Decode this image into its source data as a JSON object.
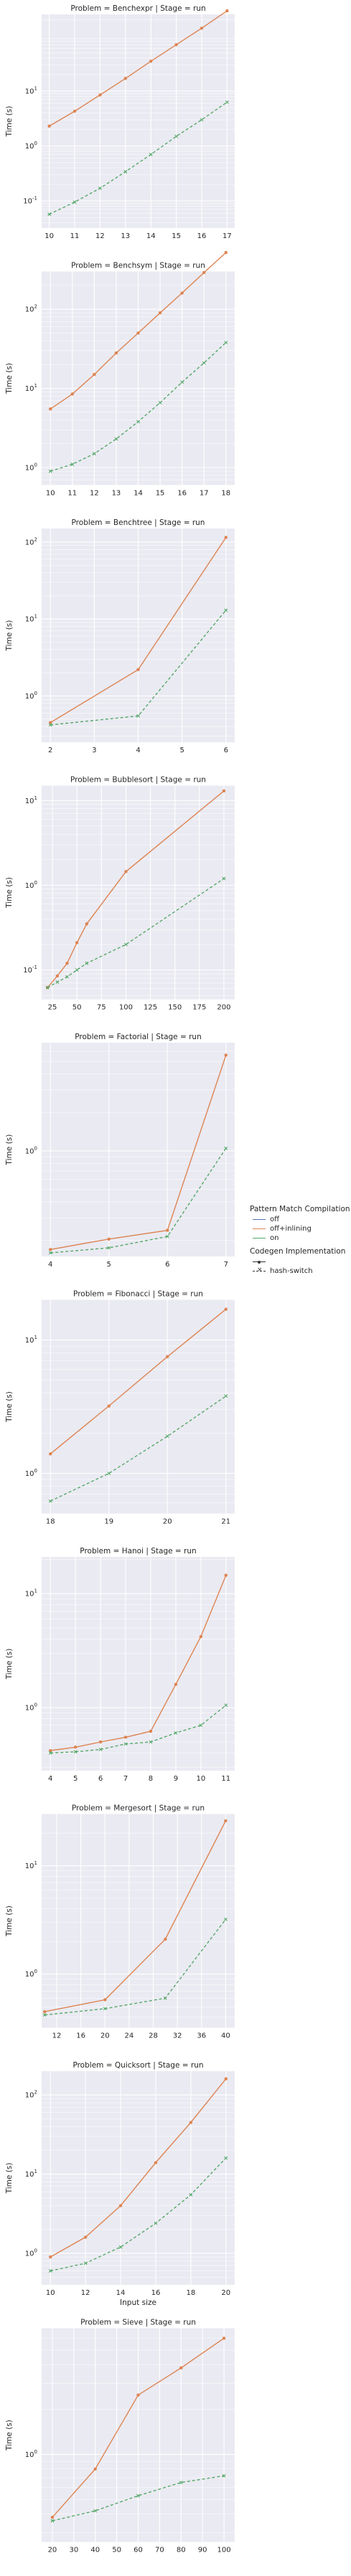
{
  "chart_data": [
    {
      "type": "line",
      "title": "Problem = Benchexpr | Stage = run",
      "xlabel": "",
      "ylabel": "Time (s)",
      "yscale": "log",
      "xlim": [
        9.7,
        17.3
      ],
      "ylim": [
        0.032,
        250
      ],
      "xticks": [
        10,
        11,
        12,
        13,
        14,
        15,
        16,
        17
      ],
      "yticks": [
        {
          "value": 0.1,
          "label": "10^-1"
        },
        {
          "value": 1,
          "label": "10^0"
        },
        {
          "value": 10,
          "label": "10^1"
        }
      ],
      "x": [
        10,
        11,
        12,
        13,
        14,
        15,
        16,
        17
      ],
      "series": [
        {
          "name": "off+inlining",
          "values": [
            2.3,
            4.3,
            8.5,
            17,
            35,
            70,
            140,
            290
          ]
        },
        {
          "name": "on",
          "values": [
            0.057,
            0.095,
            0.17,
            0.34,
            0.7,
            1.5,
            3,
            6.3
          ]
        }
      ]
    },
    {
      "type": "line",
      "title": "Problem = Benchsym | Stage = run",
      "xlabel": "",
      "ylabel": "Time (s)",
      "yscale": "log",
      "xlim": [
        9.6,
        18.4
      ],
      "ylim": [
        0.6,
        300
      ],
      "xticks": [
        10,
        11,
        12,
        13,
        14,
        15,
        16,
        17,
        18
      ],
      "yticks": [
        {
          "value": 1,
          "label": "10^0"
        },
        {
          "value": 10,
          "label": "10^1"
        },
        {
          "value": 100,
          "label": "10^2"
        }
      ],
      "x": [
        10,
        11,
        12,
        13,
        14,
        15,
        16,
        17,
        18
      ],
      "series": [
        {
          "name": "off+inlining",
          "values": [
            5.5,
            8.5,
            15,
            28,
            50,
            90,
            160,
            290,
            520
          ]
        },
        {
          "name": "on",
          "values": [
            0.9,
            1.1,
            1.5,
            2.3,
            3.8,
            6.6,
            12,
            21,
            38
          ]
        }
      ]
    },
    {
      "type": "line",
      "title": "Problem = Benchtree | Stage = run",
      "xlabel": "",
      "ylabel": "Time (s)",
      "yscale": "log",
      "xlim": [
        1.8,
        6.2
      ],
      "ylim": [
        0.25,
        150
      ],
      "xticks": [
        2,
        3,
        4,
        5,
        6
      ],
      "yticks": [
        {
          "value": 1,
          "label": "10^0"
        },
        {
          "value": 10,
          "label": "10^1"
        },
        {
          "value": 100,
          "label": "10^2"
        }
      ],
      "x": [
        2,
        4,
        6
      ],
      "series": [
        {
          "name": "off+inlining",
          "values": [
            0.45,
            2.2,
            115
          ]
        },
        {
          "name": "on",
          "values": [
            0.42,
            0.55,
            13
          ]
        }
      ]
    },
    {
      "type": "line",
      "title": "Problem = Bubblesort | Stage = run",
      "xlabel": "",
      "ylabel": "Time (s)",
      "yscale": "log",
      "xlim": [
        14,
        211
      ],
      "ylim": [
        0.045,
        15
      ],
      "xticks": [
        25,
        50,
        75,
        100,
        125,
        150,
        175,
        200
      ],
      "yticks": [
        {
          "value": 0.1,
          "label": "10^-1"
        },
        {
          "value": 1,
          "label": "10^0"
        },
        {
          "value": 10,
          "label": "10^1"
        }
      ],
      "x": [
        20,
        30,
        40,
        50,
        60,
        100,
        200
      ],
      "series": [
        {
          "name": "off+inlining",
          "values": [
            0.062,
            0.085,
            0.12,
            0.21,
            0.35,
            1.45,
            13
          ]
        },
        {
          "name": "on",
          "values": [
            0.062,
            0.072,
            0.083,
            0.1,
            0.12,
            0.2,
            1.2
          ]
        }
      ]
    },
    {
      "type": "line",
      "title": "Problem = Factorial | Stage = run",
      "xlabel": "",
      "ylabel": "Time (s)",
      "yscale": "log",
      "xlim": [
        3.85,
        7.15
      ],
      "ylim": [
        0.15,
        7
      ],
      "xticks": [
        4,
        5,
        6,
        7
      ],
      "yticks": [
        {
          "value": 1,
          "label": "10^0"
        }
      ],
      "x": [
        4,
        5,
        6,
        7
      ],
      "series": [
        {
          "name": "off+inlining",
          "values": [
            0.17,
            0.205,
            0.24,
            5.6
          ]
        },
        {
          "name": "on",
          "values": [
            0.16,
            0.175,
            0.215,
            1.05
          ]
        }
      ]
    },
    {
      "type": "line",
      "title": "Problem = Fibonacci | Stage = run",
      "xlabel": "",
      "ylabel": "Time (s)",
      "yscale": "log",
      "xlim": [
        17.85,
        21.15
      ],
      "ylim": [
        0.5,
        20
      ],
      "xticks": [
        18,
        19,
        20,
        21
      ],
      "yticks": [
        {
          "value": 1,
          "label": "10^0"
        },
        {
          "value": 10,
          "label": "10^1"
        }
      ],
      "x": [
        18,
        19,
        20,
        21
      ],
      "series": [
        {
          "name": "off+inlining",
          "values": [
            1.4,
            3.2,
            7.5,
            17
          ]
        },
        {
          "name": "on",
          "values": [
            0.62,
            1.0,
            1.9,
            3.8
          ]
        }
      ]
    },
    {
      "type": "line",
      "title": "Problem = Hanoi | Stage = run",
      "xlabel": "",
      "ylabel": "Time (s)",
      "yscale": "log",
      "xlim": [
        3.65,
        11.35
      ],
      "ylim": [
        0.28,
        21
      ],
      "xticks": [
        4,
        5,
        6,
        7,
        8,
        9,
        10,
        11
      ],
      "yticks": [
        {
          "value": 1,
          "label": "10^0"
        },
        {
          "value": 10,
          "label": "10^1"
        }
      ],
      "x": [
        4,
        5,
        6,
        7,
        8,
        9,
        10,
        11
      ],
      "series": [
        {
          "name": "off+inlining",
          "values": [
            0.42,
            0.45,
            0.5,
            0.55,
            0.62,
            1.6,
            4.2,
            14.5
          ]
        },
        {
          "name": "on",
          "values": [
            0.4,
            0.41,
            0.43,
            0.48,
            0.5,
            0.6,
            0.7,
            1.05
          ]
        }
      ]
    },
    {
      "type": "line",
      "title": "Problem = Mergesort | Stage = run",
      "xlabel": "",
      "ylabel": "Time (s)",
      "yscale": "log",
      "xlim": [
        9.5,
        41.5
      ],
      "ylim": [
        0.32,
        30
      ],
      "xticks": [
        12,
        16,
        20,
        24,
        28,
        32,
        36,
        40
      ],
      "yticks": [
        {
          "value": 1,
          "label": "10^0"
        },
        {
          "value": 10,
          "label": "10^1"
        }
      ],
      "x": [
        10,
        20,
        30,
        40
      ],
      "series": [
        {
          "name": "off+inlining",
          "values": [
            0.45,
            0.58,
            2.1,
            26
          ]
        },
        {
          "name": "on",
          "values": [
            0.42,
            0.48,
            0.6,
            3.2
          ]
        }
      ]
    },
    {
      "type": "line",
      "title": "Problem = Quicksort | Stage = run",
      "xlabel": "Input size",
      "ylabel": "Time (s)",
      "yscale": "log",
      "xlim": [
        9.5,
        20.5
      ],
      "ylim": [
        0.4,
        200
      ],
      "xticks": [
        10,
        12,
        14,
        16,
        18,
        20
      ],
      "yticks": [
        {
          "value": 1,
          "label": "10^0"
        },
        {
          "value": 10,
          "label": "10^1"
        },
        {
          "value": 100,
          "label": "10^2"
        }
      ],
      "x": [
        10,
        12,
        14,
        16,
        18,
        20
      ],
      "series": [
        {
          "name": "off+inlining",
          "values": [
            0.9,
            1.6,
            4.0,
            14,
            45,
            160
          ]
        },
        {
          "name": "on",
          "values": [
            0.6,
            0.75,
            1.2,
            2.4,
            5.5,
            16
          ]
        }
      ]
    },
    {
      "type": "line",
      "title": "Problem = Sieve | Stage = run",
      "xlabel": "",
      "ylabel": "Time (s)",
      "yscale": "log",
      "xlim": [
        15,
        105
      ],
      "ylim": [
        0.26,
        7
      ],
      "xticks": [
        20,
        30,
        40,
        50,
        60,
        70,
        80,
        90,
        100
      ],
      "yticks": [
        {
          "value": 1,
          "label": "10^0"
        }
      ],
      "x": [
        20,
        40,
        60,
        80,
        100
      ],
      "series": [
        {
          "name": "off+inlining",
          "values": [
            0.38,
            0.8,
            2.5,
            3.8,
            6.0
          ]
        },
        {
          "name": "on",
          "values": [
            0.36,
            0.42,
            0.53,
            0.65,
            0.72
          ]
        }
      ]
    }
  ],
  "legend": {
    "hue_title": "Pattern Match Compilation",
    "hue_items": [
      {
        "label": "off",
        "color": "#4c72b0"
      },
      {
        "label": "off+inlining",
        "color": "#dd8452"
      },
      {
        "label": "on",
        "color": "#55a868"
      }
    ],
    "style_title": "Codegen Implementation",
    "style_items": [
      {
        "label": ""
      },
      {
        "label": "hash-switch"
      }
    ]
  },
  "colors": {
    "off": "#4c72b0",
    "off+inlining": "#dd8452",
    "on": "#55a868",
    "panel_bg": "#eaeaf2",
    "grid": "#ffffff"
  }
}
